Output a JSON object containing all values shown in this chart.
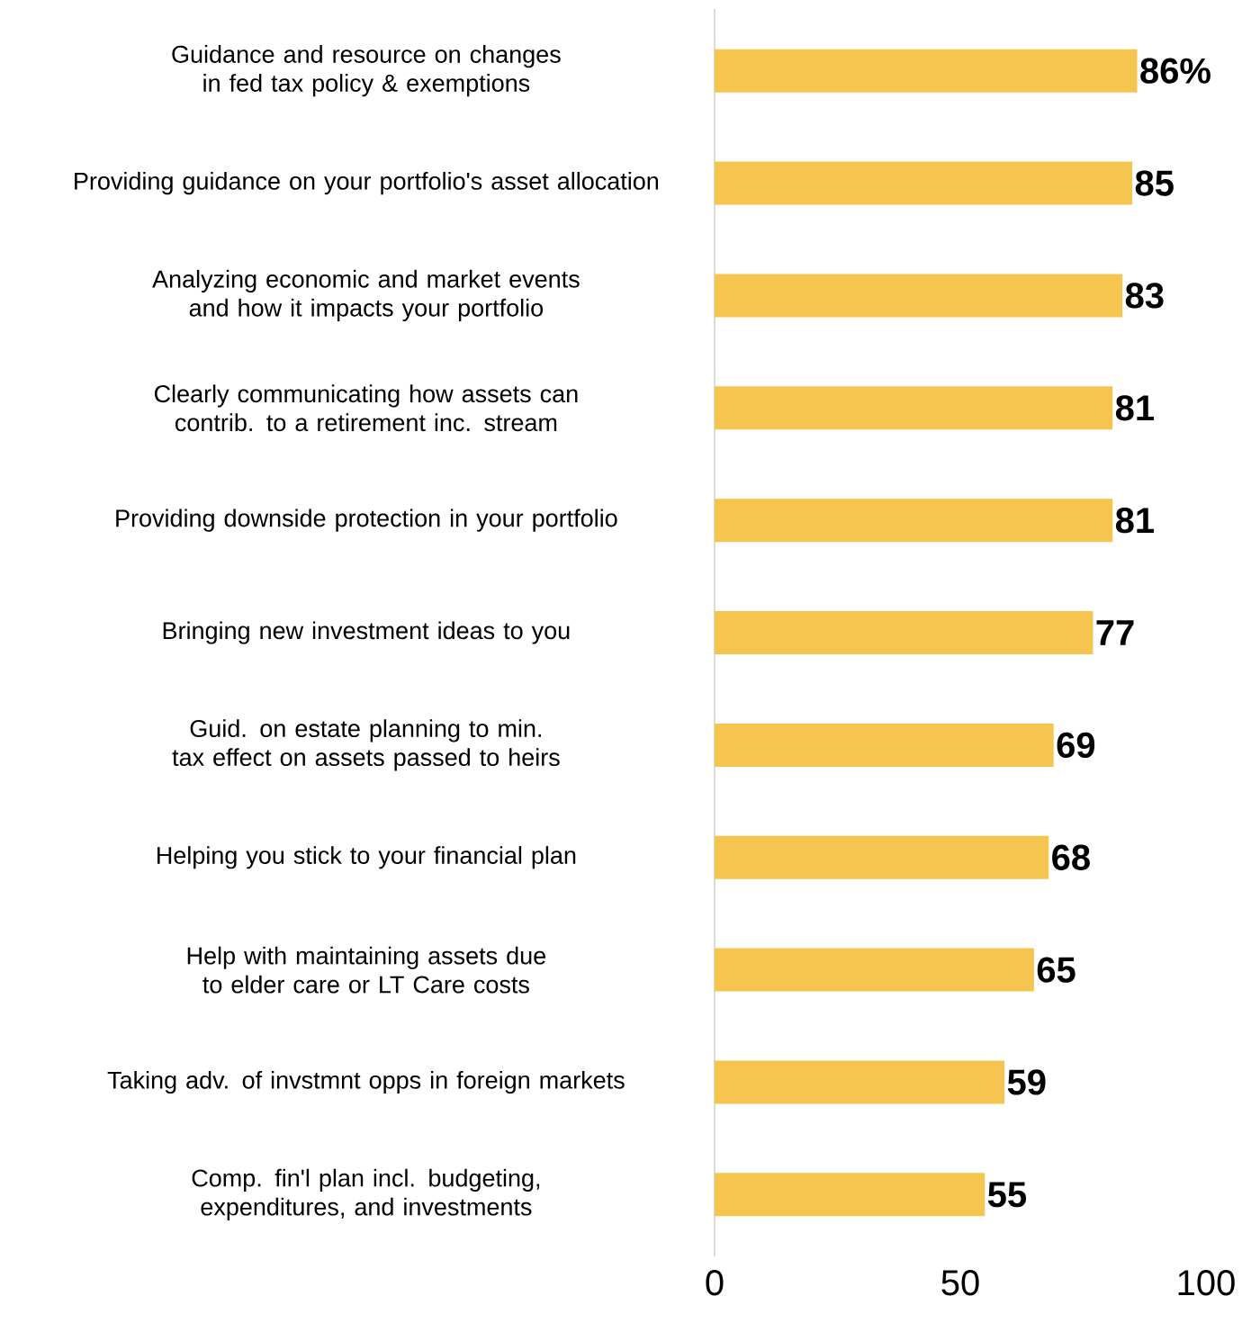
{
  "chart_data": {
    "type": "bar",
    "orientation": "horizontal",
    "categories": [
      "Guidance and resource on changes in fed tax policy & exemptions",
      "Providing guidance on your portfolio's asset allocation",
      "Analyzing economic and market events and how it impacts your portfolio",
      "Clearly communicating how assets can contrib. to a retirement inc. stream",
      "Providing downside protection in your portfolio",
      "Bringing new investment ideas to you",
      "Guid. on estate planning to min. tax effect on assets passed to heirs",
      "Helping you stick to your financial plan",
      "Help with maintaining assets due to elder care or LT Care costs",
      "Taking adv. of invstmnt opps in foreign markets",
      "Comp. fin'l plan incl. budgeting, expenditures, and investments"
    ],
    "values": [
      86,
      85,
      83,
      81,
      81,
      77,
      69,
      68,
      65,
      59,
      55
    ],
    "value_labels": [
      "86%",
      "85",
      "83",
      "81",
      "81",
      "77",
      "69",
      "68",
      "65",
      "59",
      "55"
    ],
    "color": "#f5c54f",
    "xlim": [
      0,
      100
    ],
    "xticks": [
      0,
      50,
      100
    ]
  }
}
